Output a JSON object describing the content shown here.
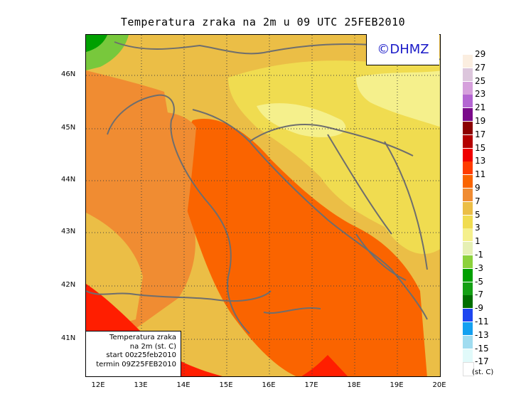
{
  "title": "Temperatura zraka na 2m u 09 UTC 25FEB2010",
  "watermark": "©DHMZ",
  "info_box": [
    "Temperatura zraka",
    "na 2m (st. C)",
    "start 00z25feb2010",
    "termin 09Z25FEB2010"
  ],
  "lat_labels": [
    "46N",
    "45N",
    "44N",
    "43N",
    "42N",
    "41N"
  ],
  "lon_labels": [
    "12E",
    "13E",
    "14E",
    "15E",
    "16E",
    "17E",
    "18E",
    "19E",
    "20E"
  ],
  "legend": {
    "unit": "(st. C)",
    "levels": [
      "29",
      "27",
      "25",
      "23",
      "21",
      "19",
      "17",
      "15",
      "13",
      "11",
      "9",
      "7",
      "5",
      "3",
      "1",
      "-1",
      "-3",
      "-5",
      "-7",
      "-9",
      "-11",
      "-13",
      "-15",
      "-17"
    ],
    "colors": [
      "#fbeee0",
      "#dcc6dc",
      "#d6a0dc",
      "#b466d2",
      "#7a0a8a",
      "#8c0000",
      "#b40000",
      "#f00000",
      "#ff3c00",
      "#fa6400",
      "#f08c32",
      "#ebbe46",
      "#f0dc50",
      "#f5f08c",
      "#e6f0b4",
      "#8cd23c",
      "#00a000",
      "#14a014",
      "#006e00",
      "#1e46f0",
      "#14a0f0",
      "#a0dcf0",
      "#e1fafa",
      "#ffffff"
    ]
  },
  "colors": {
    "sea": "#fa6400",
    "land_warm": "#f08c32",
    "land_mild": "#ebbe46",
    "land_cool": "#f0dc50",
    "land_cold": "#f5f08c",
    "hot": "#ff1e00",
    "green": "#78c83c",
    "coast": "#6e6e6e",
    "border_text": "#1a1ac8"
  }
}
